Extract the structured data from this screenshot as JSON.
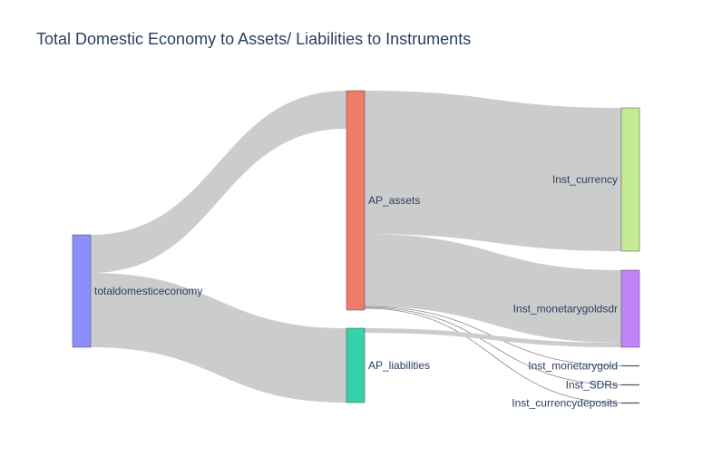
{
  "title": "Total Domestic Economy to Assets/ Liabilities to Instruments",
  "chart_data": {
    "type": "sankey",
    "nodes": [
      {
        "id": "tde",
        "label": "totaldomesticeconomy",
        "color": "#8a8ffb"
      },
      {
        "id": "assets",
        "label": "AP_assets",
        "color": "#f07b68"
      },
      {
        "id": "liab",
        "label": "AP_liabilities",
        "color": "#34d3ab"
      },
      {
        "id": "cur",
        "label": "Inst_currency",
        "color": "#c5eb97"
      },
      {
        "id": "mgs",
        "label": "Inst_monetarygoldsdr",
        "color": "#bf84f8"
      },
      {
        "id": "mg",
        "label": "Inst_monetarygold",
        "color": "#636efa"
      },
      {
        "id": "sdr",
        "label": "Inst_SDRs",
        "color": "#636efa"
      },
      {
        "id": "cd",
        "label": "Inst_currencydeposits",
        "color": "#636efa"
      }
    ],
    "links": [
      {
        "source": "tde",
        "target": "assets",
        "value": 42
      },
      {
        "source": "tde",
        "target": "liab",
        "value": 82
      },
      {
        "source": "assets",
        "target": "cur",
        "value": 158
      },
      {
        "source": "assets",
        "target": "mgs",
        "value": 80
      },
      {
        "source": "assets",
        "target": "mg",
        "value": 1
      },
      {
        "source": "assets",
        "target": "sdr",
        "value": 1
      },
      {
        "source": "assets",
        "target": "cd",
        "value": 1
      },
      {
        "source": "liab",
        "target": "mgs",
        "value": 5
      }
    ]
  }
}
